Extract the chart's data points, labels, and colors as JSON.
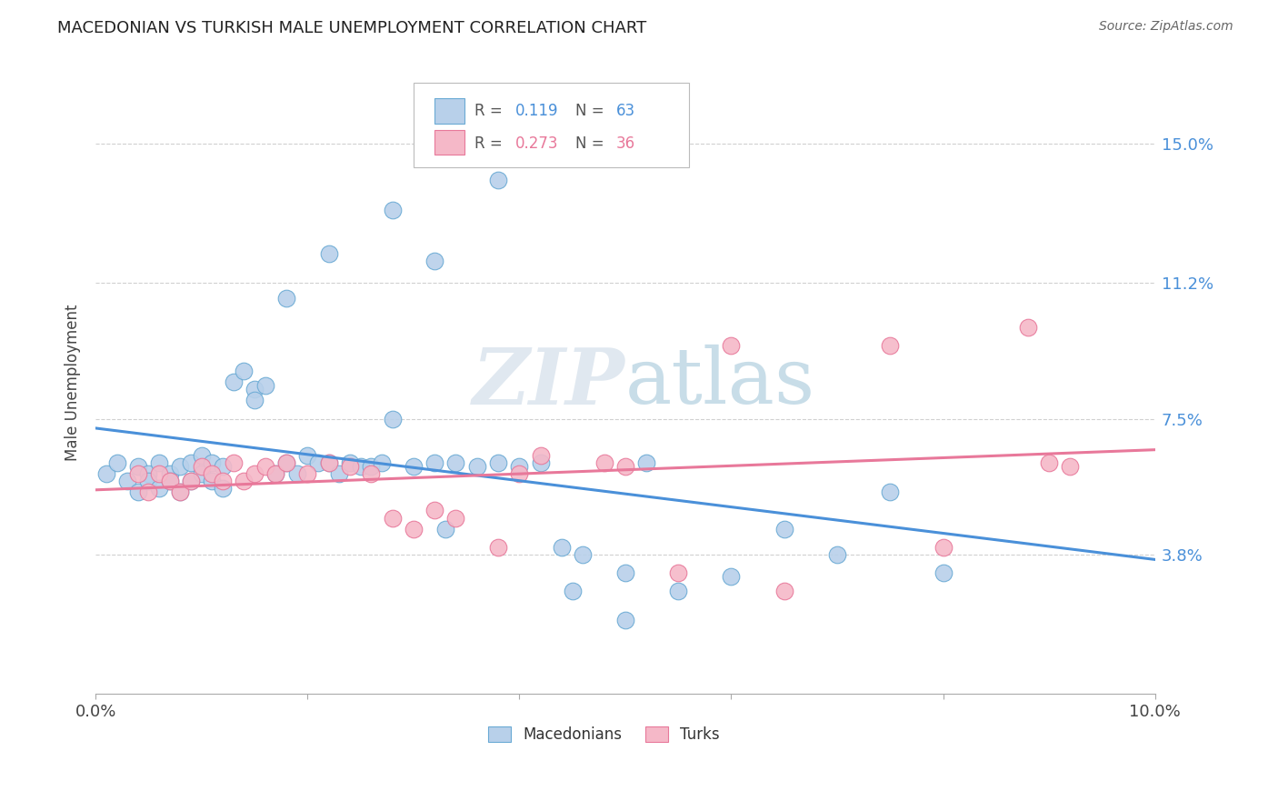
{
  "title": "MACEDONIAN VS TURKISH MALE UNEMPLOYMENT CORRELATION CHART",
  "source": "Source: ZipAtlas.com",
  "ylabel": "Male Unemployment",
  "xlim": [
    0.0,
    0.1
  ],
  "ylim": [
    0.0,
    0.17
  ],
  "xticks": [
    0.0,
    0.02,
    0.04,
    0.06,
    0.08,
    0.1
  ],
  "xticklabels": [
    "0.0%",
    "",
    "",
    "",
    "",
    "10.0%"
  ],
  "ytick_positions": [
    0.038,
    0.075,
    0.112,
    0.15
  ],
  "ytick_labels": [
    "3.8%",
    "7.5%",
    "11.2%",
    "15.0%"
  ],
  "macedonian_fill": "#b8d0ea",
  "macedonian_edge": "#6aaad4",
  "turkish_fill": "#f5b8c8",
  "turkish_edge": "#e8789a",
  "mac_line_color": "#4a90d9",
  "turk_line_color": "#e8789a",
  "grid_color": "#d0d0d0",
  "watermark_color": "#e0e8f0",
  "legend_R_mac": "0.119",
  "legend_N_mac": "63",
  "legend_R_turk": "0.273",
  "legend_N_turk": "36",
  "legend_text_color": "#555555",
  "legend_num_color": "#4a90d9",
  "mac_x": [
    0.001,
    0.002,
    0.003,
    0.004,
    0.004,
    0.005,
    0.005,
    0.006,
    0.006,
    0.007,
    0.007,
    0.008,
    0.008,
    0.009,
    0.009,
    0.01,
    0.01,
    0.011,
    0.011,
    0.012,
    0.012,
    0.013,
    0.014,
    0.015,
    0.015,
    0.016,
    0.017,
    0.018,
    0.019,
    0.02,
    0.021,
    0.022,
    0.023,
    0.024,
    0.025,
    0.026,
    0.027,
    0.028,
    0.03,
    0.032,
    0.033,
    0.034,
    0.036,
    0.038,
    0.04,
    0.042,
    0.044,
    0.046,
    0.05,
    0.052,
    0.055,
    0.06,
    0.065,
    0.07,
    0.075,
    0.08,
    0.018,
    0.022,
    0.028,
    0.032,
    0.038,
    0.045,
    0.05
  ],
  "mac_y": [
    0.06,
    0.063,
    0.058,
    0.062,
    0.055,
    0.06,
    0.058,
    0.063,
    0.056,
    0.06,
    0.058,
    0.062,
    0.055,
    0.063,
    0.058,
    0.065,
    0.06,
    0.063,
    0.058,
    0.062,
    0.056,
    0.085,
    0.088,
    0.083,
    0.08,
    0.084,
    0.06,
    0.063,
    0.06,
    0.065,
    0.063,
    0.063,
    0.06,
    0.063,
    0.062,
    0.062,
    0.063,
    0.075,
    0.062,
    0.063,
    0.045,
    0.063,
    0.062,
    0.063,
    0.062,
    0.063,
    0.04,
    0.038,
    0.033,
    0.063,
    0.028,
    0.032,
    0.045,
    0.038,
    0.055,
    0.033,
    0.108,
    0.12,
    0.132,
    0.118,
    0.14,
    0.028,
    0.02
  ],
  "turk_x": [
    0.004,
    0.005,
    0.006,
    0.007,
    0.008,
    0.009,
    0.01,
    0.011,
    0.012,
    0.013,
    0.014,
    0.015,
    0.016,
    0.017,
    0.018,
    0.02,
    0.022,
    0.024,
    0.026,
    0.028,
    0.03,
    0.032,
    0.034,
    0.038,
    0.04,
    0.042,
    0.048,
    0.05,
    0.055,
    0.06,
    0.065,
    0.075,
    0.08,
    0.088,
    0.09,
    0.092
  ],
  "turk_y": [
    0.06,
    0.055,
    0.06,
    0.058,
    0.055,
    0.058,
    0.062,
    0.06,
    0.058,
    0.063,
    0.058,
    0.06,
    0.062,
    0.06,
    0.063,
    0.06,
    0.063,
    0.062,
    0.06,
    0.048,
    0.045,
    0.05,
    0.048,
    0.04,
    0.06,
    0.065,
    0.063,
    0.062,
    0.033,
    0.095,
    0.028,
    0.095,
    0.04,
    0.1,
    0.063,
    0.062
  ]
}
